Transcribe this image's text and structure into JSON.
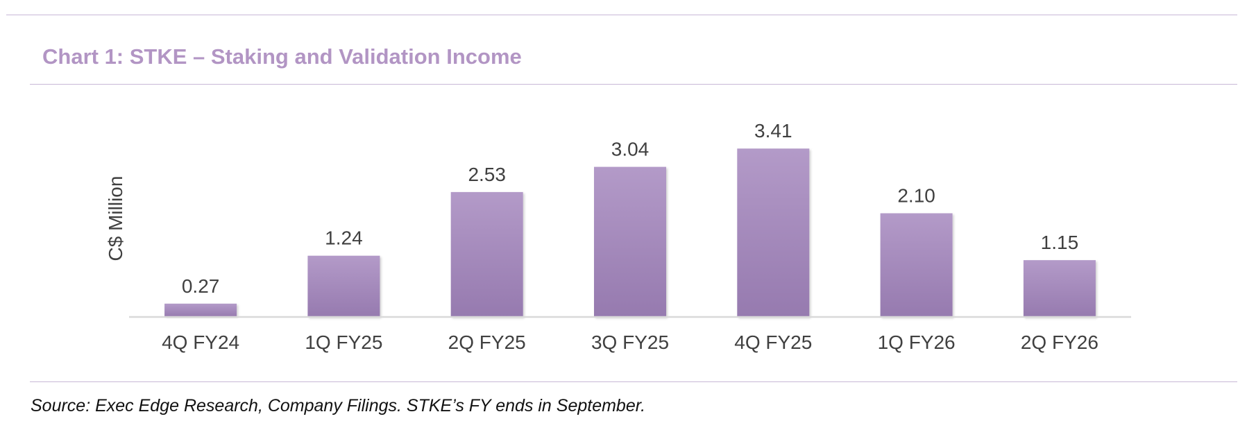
{
  "chart_data": {
    "type": "bar",
    "title": "Chart 1: STKE – Staking and Validation Income",
    "ylabel": "C$ Million",
    "xlabel": "",
    "categories": [
      "4Q FY24",
      "1Q FY25",
      "2Q FY25",
      "3Q FY25",
      "4Q FY25",
      "1Q FY26",
      "2Q FY26"
    ],
    "values": [
      0.27,
      1.24,
      2.53,
      3.04,
      3.41,
      2.1,
      1.15
    ],
    "value_labels": [
      "0.27",
      "1.24",
      "2.53",
      "3.04",
      "3.41",
      "2.10",
      "1.15"
    ],
    "ylim": [
      0,
      4
    ],
    "grid": false,
    "legend": "none"
  },
  "source": "Source: Exec Edge Research, Company Filings. STKE’s FY ends in September.",
  "colors": {
    "title": "#b295c4",
    "bar_top": "#b39ac8",
    "bar_bottom": "#967aaf",
    "rule": "#c8b8d6",
    "axis": "#d9d9d9",
    "text": "#404040"
  }
}
